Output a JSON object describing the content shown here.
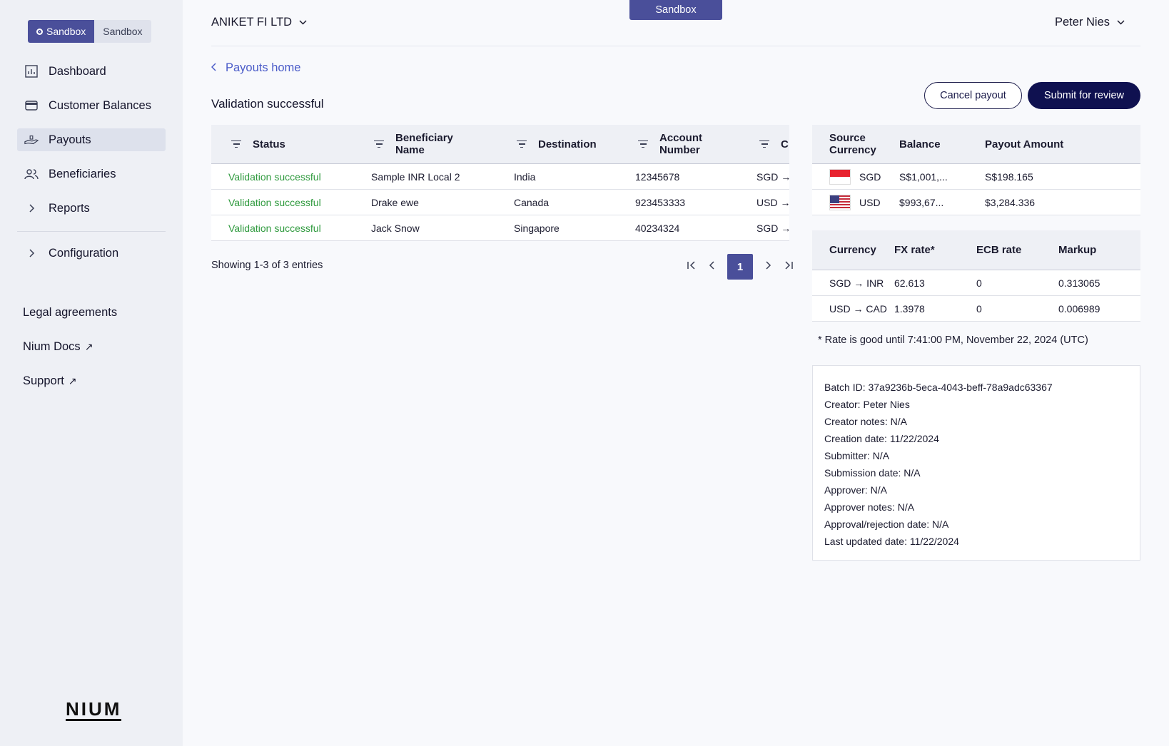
{
  "env": {
    "active": "Sandbox",
    "inactive": "Sandbox",
    "banner": "Sandbox"
  },
  "nav": {
    "items": [
      {
        "label": "Dashboard",
        "icon": "dashboard-icon"
      },
      {
        "label": "Customer Balances",
        "icon": "wallet-icon"
      },
      {
        "label": "Payouts",
        "icon": "payout-hand-icon",
        "active": true
      },
      {
        "label": "Beneficiaries",
        "icon": "users-icon"
      },
      {
        "label": "Reports",
        "icon": "chevron-right-icon"
      }
    ],
    "configuration": "Configuration",
    "legal": "Legal agreements",
    "docs": "Nium Docs",
    "support": "Support"
  },
  "logo": "NIUM",
  "header": {
    "org": "ANIKET FI LTD",
    "user": "Peter Nies"
  },
  "back_link": "Payouts home",
  "page_title": "Validation successful",
  "buttons": {
    "cancel": "Cancel payout",
    "submit": "Submit for review"
  },
  "table": {
    "headers": [
      "Status",
      "Beneficiary Name",
      "Destination",
      "Account Number",
      "C"
    ],
    "rows": [
      {
        "status": "Validation successful",
        "name": "Sample INR Local 2",
        "destination": "India",
        "account": "12345678",
        "currency": "SGD →"
      },
      {
        "status": "Validation successful",
        "name": "Drake ewe",
        "destination": "Canada",
        "account": "923453333",
        "currency": "USD →"
      },
      {
        "status": "Validation successful",
        "name": "Jack Snow",
        "destination": "Singapore",
        "account": "40234324",
        "currency": "SGD →"
      }
    ],
    "showing": "Showing 1-3 of 3 entries",
    "current_page": "1"
  },
  "balances": {
    "headers": [
      "Source Currency",
      "Balance",
      "Payout Amount"
    ],
    "rows": [
      {
        "currency": "SGD",
        "balance": "S$1,001,...",
        "payout": "S$198.165"
      },
      {
        "currency": "USD",
        "balance": "$993,67...",
        "payout": "$3,284.336"
      }
    ]
  },
  "fx": {
    "headers": [
      "Currency",
      "FX rate*",
      "ECB rate",
      "Markup"
    ],
    "rows": [
      {
        "pair": "SGD → INR",
        "fx": "62.613",
        "ecb": "0",
        "markup": "0.313065"
      },
      {
        "pair": "USD → CAD",
        "fx": "1.3978",
        "ecb": "0",
        "markup": "0.006989"
      }
    ],
    "note": "* Rate is good until 7:41:00 PM, November 22, 2024 (UTC)"
  },
  "details": [
    "Batch ID: 37a9236b-5eca-4043-beff-78a9adc63367",
    "Creator: Peter Nies",
    "Creator notes: N/A",
    "Creation date: 11/22/2024",
    "Submitter: N/A",
    "Submission date: N/A",
    "Approver: N/A",
    "Approver notes: N/A",
    "Approval/rejection date: N/A",
    "Last updated date: 11/22/2024"
  ]
}
